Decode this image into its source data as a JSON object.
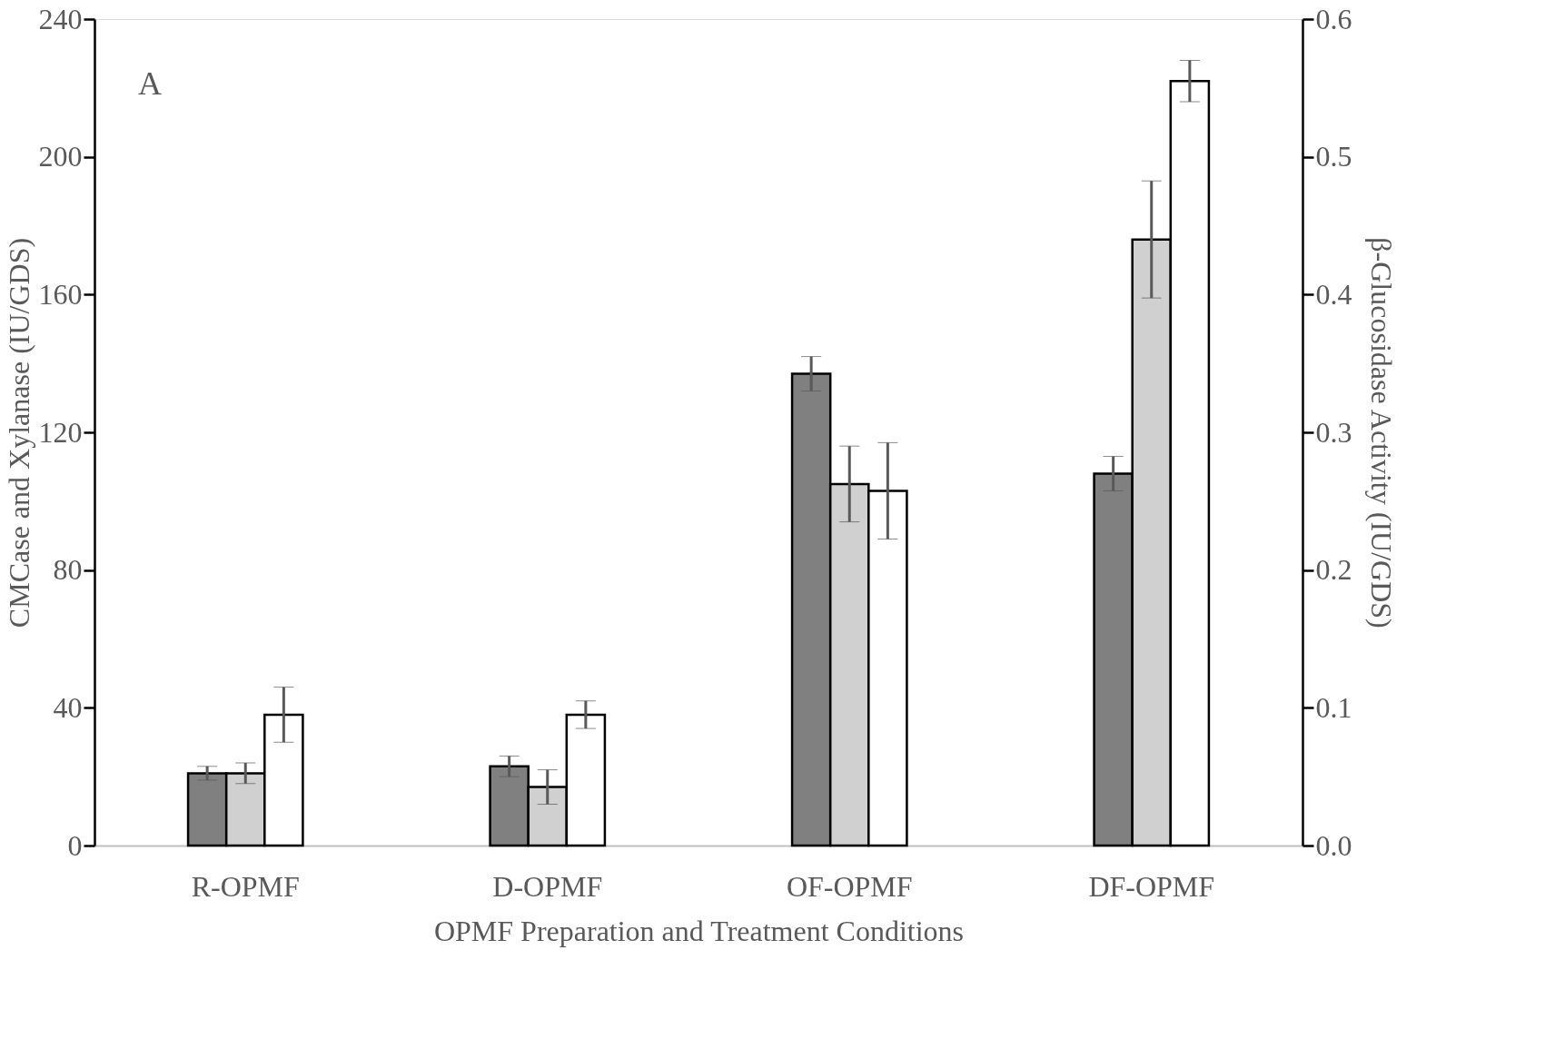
{
  "chart_data": {
    "type": "bar",
    "xlabel": "OPMF Preparation and Treatment Conditions",
    "ylabel": "CMCase and Xylanase (IU/GDS)",
    "y2label": "β-Glucosidase Activity (IU/GDS)",
    "categories": [
      "R-OPMF",
      "D-OPMF",
      "OF-OPMF",
      "DF-OPMF"
    ],
    "series": [
      {
        "color": "#808080",
        "values": [
          21,
          23,
          137,
          108
        ],
        "errors": [
          2,
          3,
          5,
          5
        ]
      },
      {
        "color": "#d0d0d0",
        "values": [
          21,
          17,
          105,
          176
        ],
        "errors": [
          3,
          5,
          11,
          17
        ]
      },
      {
        "color": "#ffffff",
        "values": [
          38,
          38,
          103,
          222
        ],
        "errors": [
          8,
          4,
          14,
          6
        ]
      }
    ],
    "ylim": [
      0,
      240
    ],
    "yticks": [
      0,
      40,
      80,
      120,
      160,
      200,
      240
    ],
    "y2lim": [
      0,
      0.6
    ],
    "y2ticks": [
      {
        "value": 0,
        "label": "0.0"
      },
      0.1,
      0.2,
      0.3,
      0.4,
      0.5,
      0.6
    ],
    "annotations": [
      "A"
    ],
    "grid": false,
    "legend": false
  }
}
